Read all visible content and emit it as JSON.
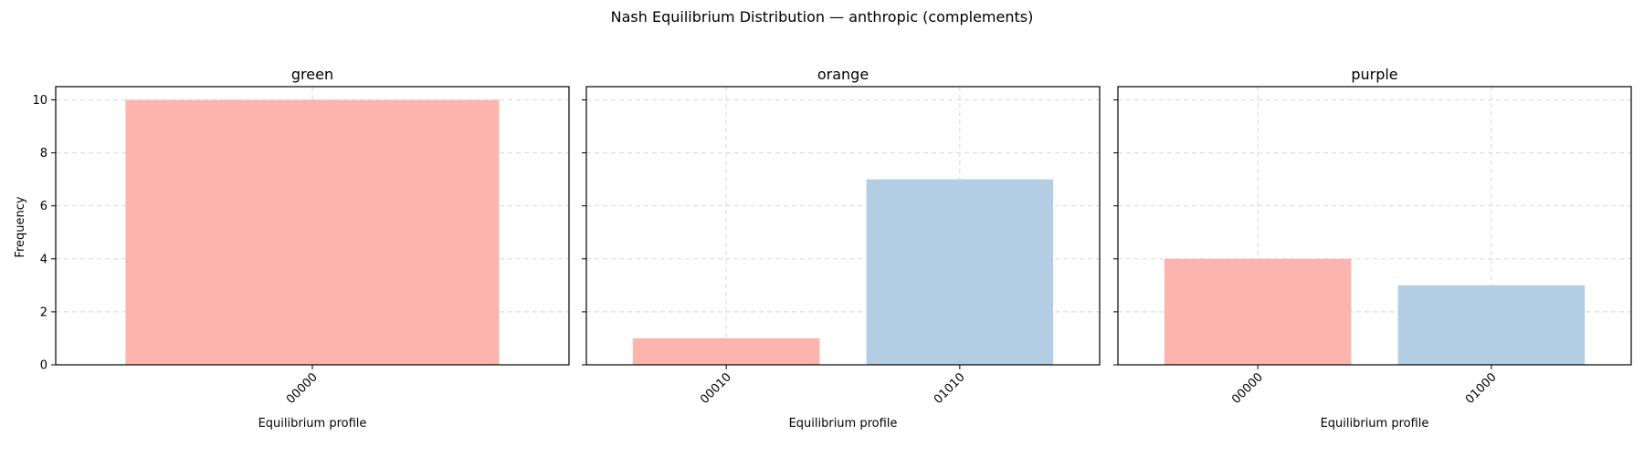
{
  "chart_data": {
    "title": "Nash Equilibrium Distribution — anthropic (complements)",
    "ylabel": "Frequency",
    "ylim": [
      0,
      10.5
    ],
    "yticks": [
      0,
      2,
      4,
      6,
      8,
      10
    ],
    "grid": true,
    "colors": {
      "first": "#fbb4ae",
      "second": "#b3cde3"
    },
    "panels": [
      {
        "type": "bar",
        "title": "green",
        "xlabel": "Equilibrium profile",
        "categories": [
          "00000"
        ],
        "values": [
          10
        ]
      },
      {
        "type": "bar",
        "title": "orange",
        "xlabel": "Equilibrium profile",
        "categories": [
          "00010",
          "01010"
        ],
        "values": [
          1,
          7
        ]
      },
      {
        "type": "bar",
        "title": "purple",
        "xlabel": "Equilibrium profile",
        "categories": [
          "00000",
          "01000"
        ],
        "values": [
          4,
          3
        ]
      }
    ]
  }
}
